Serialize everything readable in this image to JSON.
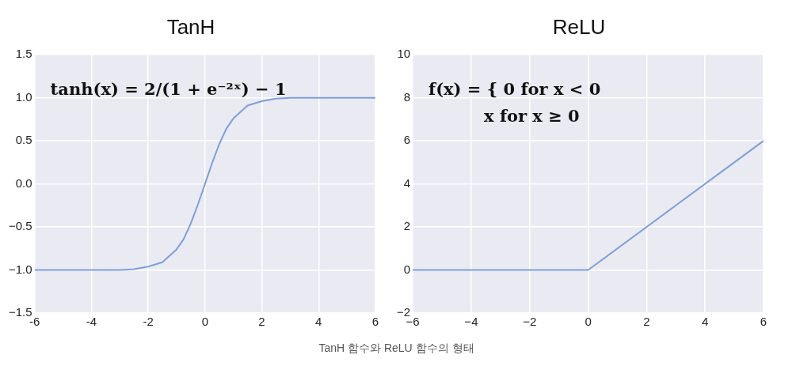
{
  "chart_data": [
    {
      "type": "line",
      "title": "TanH",
      "x": [
        -6,
        -5,
        -4,
        -3,
        -2.5,
        -2,
        -1.5,
        -1,
        -0.75,
        -0.5,
        -0.25,
        0,
        0.25,
        0.5,
        0.75,
        1,
        1.5,
        2,
        2.5,
        3,
        4,
        5,
        6
      ],
      "series": [
        {
          "color": "#7f9fd6",
          "values": [
            -1,
            -1,
            -1,
            -1,
            -0.99,
            -0.96,
            -0.91,
            -0.76,
            -0.64,
            -0.46,
            -0.24,
            0,
            0.24,
            0.46,
            0.64,
            0.76,
            0.91,
            0.96,
            0.99,
            1,
            1,
            1,
            1
          ]
        }
      ],
      "xlim": [
        -6,
        6
      ],
      "xticks": [
        -6,
        -4,
        -2,
        0,
        2,
        4,
        6
      ],
      "ylim": [
        -1.5,
        1.5
      ],
      "yticks": [
        {
          "value": -1.5,
          "label": "−1.5"
        },
        {
          "value": -1,
          "label": "−1.0"
        },
        {
          "value": -0.5,
          "label": "−0.5"
        },
        {
          "value": 0,
          "label": "0.0"
        },
        {
          "value": 0.5,
          "label": "0.5"
        },
        {
          "value": 1,
          "label": "1.0"
        },
        {
          "value": 1.5,
          "label": "1.5"
        }
      ],
      "grid": true,
      "legend": false,
      "marker": "none",
      "line_style": "solid",
      "annotations": [
        "tanh(x) = 2/(1 + e⁻²ˣ) − 1"
      ]
    },
    {
      "type": "line",
      "title": "ReLU",
      "x": [
        -6,
        0,
        6
      ],
      "series": [
        {
          "color": "#7f9fd6",
          "values": [
            0,
            0,
            6
          ]
        }
      ],
      "xlim": [
        -6,
        6
      ],
      "xticks": [
        {
          "value": -6,
          "label": "−6"
        },
        {
          "value": -4,
          "label": "−4"
        },
        {
          "value": -2,
          "label": "−2"
        },
        0,
        2,
        4,
        6
      ],
      "ylim": [
        -2,
        10
      ],
      "yticks": [
        {
          "value": -2,
          "label": "−2"
        },
        0,
        2,
        4,
        6,
        8,
        10
      ],
      "grid": true,
      "legend": false,
      "marker": "none",
      "line_style": "solid",
      "annotations": [
        "f(x) = { 0 for x < 0",
        "x for x ≥ 0",
        "TanH 함수와 ReLU 함수의 형태"
      ]
    }
  ]
}
